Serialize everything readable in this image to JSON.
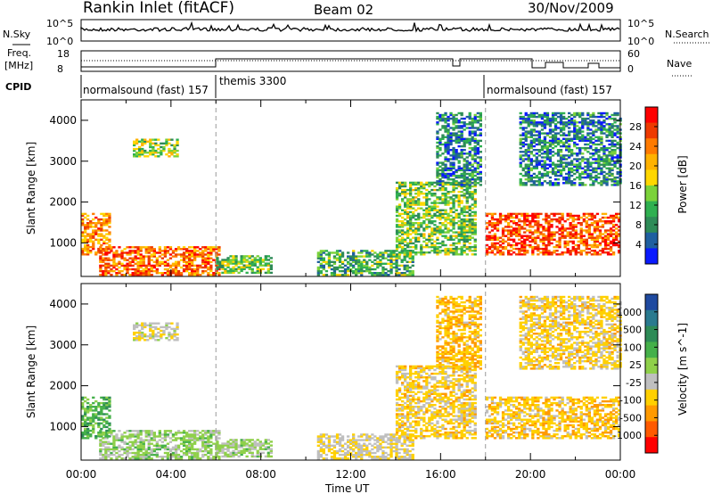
{
  "header": {
    "station": "Rankin Inlet (fitACF)",
    "beam": "Beam 02",
    "date": "30/Nov/2009"
  },
  "noise_panel": {
    "left_label": "N.Sky",
    "right_label": "N.Search",
    "left_ticks": [
      "10^5",
      "10^0"
    ],
    "right_ticks": [
      "10^5",
      "10^0"
    ]
  },
  "freq_panel": {
    "left_label_top": "Freq.",
    "left_label_bottom": "[MHz]",
    "right_label": "Nave",
    "left_ticks": [
      "18",
      "8"
    ],
    "right_ticks": [
      "60",
      "0"
    ]
  },
  "cpid": {
    "label": "CPID",
    "modes": [
      {
        "name": "normalsound (fast) 157",
        "start_hour": 0
      },
      {
        "name": "themis 3300",
        "start_hour": 6
      },
      {
        "name": "normalsound (fast) 157",
        "start_hour": 18
      }
    ]
  },
  "axes": {
    "xlabel": "Time UT",
    "ylabel": "Slant Range [km]",
    "x_tick_labels": [
      "00:00",
      "04:00",
      "08:00",
      "12:00",
      "16:00",
      "20:00",
      "00:00"
    ],
    "y_tick_labels": [
      "1000",
      "2000",
      "3000",
      "4000"
    ]
  },
  "colorbars": {
    "power": {
      "label": "Power [dB]",
      "ticks": [
        "28",
        "24",
        "20",
        "16",
        "12",
        "8",
        "4"
      ],
      "colors": [
        "#ff0000",
        "#ee3a00",
        "#ff7a00",
        "#ffb200",
        "#ffd700",
        "#7bd23a",
        "#2fb050",
        "#2e8b57",
        "#1f5fa0",
        "#0a1aff"
      ]
    },
    "velocity": {
      "label": "Velocity [m s^-1]",
      "ticks": [
        "1000",
        "500",
        "100",
        "25",
        "-25",
        "-100",
        "-500",
        "-1000"
      ],
      "colors": [
        "#1f4aa0",
        "#2a7a8f",
        "#2e8b57",
        "#45b04a",
        "#8fd04a",
        "#bfbfbf",
        "#ffd000",
        "#ff9a00",
        "#ff5a00",
        "#ff0000"
      ]
    }
  },
  "chart_data": {
    "type": "heatmap",
    "x_range_hours": [
      0,
      24
    ],
    "y_range_km": [
      180,
      4500
    ],
    "power_range_db": [
      0,
      30
    ],
    "velocity_range_ms": [
      -1000,
      1000
    ],
    "grid": false,
    "mode_change_hours": [
      6,
      18
    ],
    "echo_regions": [
      {
        "t0": 0.0,
        "t1": 1.3,
        "r0": 700,
        "r1": 1700,
        "power": 22,
        "velocity": 300
      },
      {
        "t0": 0.8,
        "t1": 6.2,
        "r0": 200,
        "r1": 900,
        "power": 24,
        "velocity": 80
      },
      {
        "t0": 2.3,
        "t1": 4.3,
        "r0": 3100,
        "r1": 3550,
        "power": 14,
        "velocity": -150
      },
      {
        "t0": 6.0,
        "t1": 8.4,
        "r0": 250,
        "r1": 700,
        "power": 12,
        "velocity": 60
      },
      {
        "t0": 10.5,
        "t1": 14.8,
        "r0": 200,
        "r1": 800,
        "power": 10,
        "velocity": -200
      },
      {
        "t0": 14.0,
        "t1": 17.5,
        "r0": 700,
        "r1": 2500,
        "power": 12,
        "velocity": -300
      },
      {
        "t0": 15.8,
        "t1": 17.8,
        "r0": 2400,
        "r1": 4200,
        "power": 6,
        "velocity": -400
      },
      {
        "t0": 18.0,
        "t1": 24.0,
        "r0": 700,
        "r1": 1700,
        "power": 26,
        "velocity": -350
      },
      {
        "t0": 19.5,
        "t1": 24.0,
        "r0": 2400,
        "r1": 4200,
        "power": 6,
        "velocity": -300
      }
    ]
  }
}
